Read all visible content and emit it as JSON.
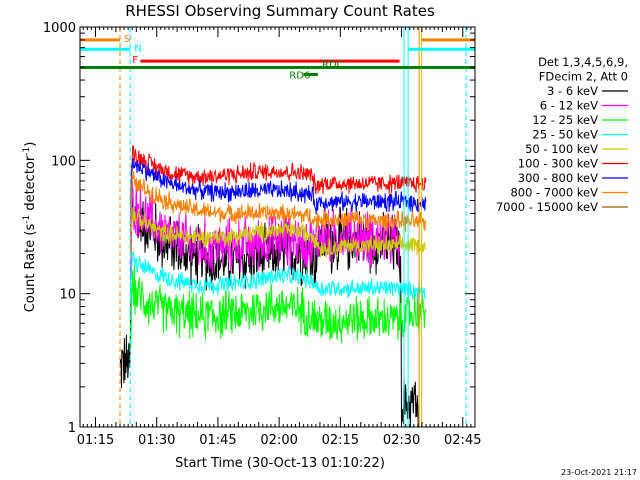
{
  "chart_data": {
    "type": "line",
    "title": "RHESSI Observing Summary Count Rates",
    "xlabel": "Start Time (30-Oct-13 01:10:22)",
    "ylabel_main": "Count Rate (s",
    "ylabel_sup1": "-1",
    "ylabel_mid": " detector",
    "ylabel_sup2": "-1",
    "ylabel_end": ")",
    "yscale": "log",
    "ylim": [
      1,
      1000
    ],
    "xlim_minutes": [
      1.2,
      98.0
    ],
    "x_ticks": [
      {
        "minute": 5,
        "label": "01:15"
      },
      {
        "minute": 20,
        "label": "01:30"
      },
      {
        "minute": 35,
        "label": "01:45"
      },
      {
        "minute": 50,
        "label": "02:00"
      },
      {
        "minute": 65,
        "label": "02:15"
      },
      {
        "minute": 80,
        "label": "02:30"
      },
      {
        "minute": 95,
        "label": "02:45"
      }
    ],
    "y_ticks": [
      {
        "value": 1,
        "label": "1"
      },
      {
        "value": 10,
        "label": "10"
      },
      {
        "value": 100,
        "label": "100"
      },
      {
        "value": 1000,
        "label": "1000"
      }
    ],
    "legend_header": [
      "Det 1,3,4,5,6,9,",
      "FDecim 2, Att 0"
    ],
    "series": [
      {
        "name": "3 - 6 keV",
        "color": "#000000",
        "points": [
          [
            11.0,
            2.6
          ],
          [
            11.5,
            3.0
          ],
          [
            13.5,
            3.0
          ],
          [
            13.6,
            6
          ],
          [
            14.0,
            45
          ],
          [
            15,
            38
          ],
          [
            18,
            31
          ],
          [
            20,
            27
          ],
          [
            23,
            23
          ],
          [
            26,
            21
          ],
          [
            30,
            19
          ],
          [
            34,
            18
          ],
          [
            38,
            17.5
          ],
          [
            42,
            18
          ],
          [
            46,
            19
          ],
          [
            50,
            20
          ],
          [
            54,
            20
          ],
          [
            58,
            19.5
          ],
          [
            59,
            19
          ],
          [
            60,
            25
          ],
          [
            62,
            24
          ],
          [
            65,
            25
          ],
          [
            68,
            26
          ],
          [
            71,
            25
          ],
          [
            74,
            24
          ],
          [
            77,
            23
          ],
          [
            79.5,
            22
          ],
          [
            80,
            1.5
          ],
          [
            84,
            1.5
          ],
          [
            84.3,
            0
          ]
        ]
      },
      {
        "name": "6 - 12 keV",
        "color": "#ff00ff",
        "points": [
          [
            13.6,
            6
          ],
          [
            14.0,
            52
          ],
          [
            15,
            44
          ],
          [
            18,
            36
          ],
          [
            20,
            31
          ],
          [
            23,
            27
          ],
          [
            26,
            25
          ],
          [
            30,
            23
          ],
          [
            34,
            22.5
          ],
          [
            38,
            23
          ],
          [
            42,
            23.5
          ],
          [
            46,
            24
          ],
          [
            50,
            25
          ],
          [
            54,
            25
          ],
          [
            58,
            24
          ],
          [
            59,
            23
          ],
          [
            60,
            27
          ],
          [
            62,
            26
          ],
          [
            65,
            27
          ],
          [
            68,
            27
          ],
          [
            71,
            26
          ],
          [
            74,
            26
          ],
          [
            77,
            25
          ],
          [
            79.5,
            24
          ]
        ]
      },
      {
        "name": "12 - 25 keV",
        "color": "#00ff00",
        "points": [
          [
            13.6,
            3
          ],
          [
            14.0,
            12
          ],
          [
            15,
            10
          ],
          [
            18,
            8.5
          ],
          [
            20,
            8
          ],
          [
            23,
            7.4
          ],
          [
            26,
            7.0
          ],
          [
            30,
            6.8
          ],
          [
            34,
            6.8
          ],
          [
            38,
            7.0
          ],
          [
            42,
            7.3
          ],
          [
            46,
            7.8
          ],
          [
            50,
            8.2
          ],
          [
            54,
            7.8
          ],
          [
            58,
            7.0
          ],
          [
            59,
            6.3
          ],
          [
            60,
            6.2
          ],
          [
            62,
            6.2
          ],
          [
            65,
            6.3
          ],
          [
            68,
            6.5
          ],
          [
            71,
            6.4
          ],
          [
            74,
            6.4
          ],
          [
            77,
            6.4
          ],
          [
            79.5,
            6.4
          ],
          [
            84.5,
            7.5
          ],
          [
            86,
            7.8
          ]
        ]
      },
      {
        "name": "25 - 50 keV",
        "color": "#00ffff",
        "points": [
          [
            13.6,
            8
          ],
          [
            14.0,
            19
          ],
          [
            15,
            17
          ],
          [
            18,
            15
          ],
          [
            20,
            14
          ],
          [
            23,
            13
          ],
          [
            26,
            12.2
          ],
          [
            30,
            11.8
          ],
          [
            34,
            11.6
          ],
          [
            38,
            11.8
          ],
          [
            42,
            12.3
          ],
          [
            46,
            13
          ],
          [
            50,
            13.6
          ],
          [
            54,
            13.4
          ],
          [
            58,
            12.5
          ],
          [
            59,
            11.5
          ],
          [
            60,
            10.8
          ],
          [
            62,
            11
          ],
          [
            65,
            11
          ],
          [
            68,
            11
          ],
          [
            71,
            11
          ],
          [
            74,
            11
          ],
          [
            77,
            11
          ],
          [
            79.5,
            11
          ],
          [
            84.5,
            10.5
          ],
          [
            86,
            10.5
          ]
        ]
      },
      {
        "name": "50 - 100 keV",
        "color": "#cccc00",
        "points": [
          [
            13.6,
            20
          ],
          [
            14.0,
            42
          ],
          [
            15,
            37
          ],
          [
            18,
            33
          ],
          [
            20,
            30
          ],
          [
            23,
            28
          ],
          [
            26,
            27
          ],
          [
            30,
            26.5
          ],
          [
            34,
            26.5
          ],
          [
            38,
            27
          ],
          [
            42,
            28
          ],
          [
            46,
            29
          ],
          [
            50,
            30
          ],
          [
            54,
            29.5
          ],
          [
            58,
            28
          ],
          [
            59,
            26
          ],
          [
            60,
            22
          ],
          [
            62,
            22
          ],
          [
            65,
            22.5
          ],
          [
            68,
            23
          ],
          [
            71,
            23
          ],
          [
            74,
            23
          ],
          [
            77,
            23
          ],
          [
            79.5,
            23
          ],
          [
            84.5,
            23
          ],
          [
            86,
            23
          ]
        ]
      },
      {
        "name": "100 - 300 keV",
        "color": "#ff0000",
        "points": [
          [
            13.6,
            30
          ],
          [
            14.0,
            118
          ],
          [
            15,
            107
          ],
          [
            18,
            96
          ],
          [
            20,
            89
          ],
          [
            23,
            82
          ],
          [
            26,
            78
          ],
          [
            30,
            76
          ],
          [
            34,
            76
          ],
          [
            38,
            78
          ],
          [
            42,
            80
          ],
          [
            46,
            82
          ],
          [
            50,
            83
          ],
          [
            54,
            81
          ],
          [
            58,
            78
          ],
          [
            59,
            60
          ],
          [
            60,
            67
          ],
          [
            62,
            67
          ],
          [
            65,
            67
          ],
          [
            68,
            67
          ],
          [
            71,
            67
          ],
          [
            74,
            67
          ],
          [
            77,
            67
          ],
          [
            79.5,
            67
          ],
          [
            84.5,
            67
          ],
          [
            86,
            67
          ]
        ]
      },
      {
        "name": "300 - 800 keV",
        "color": "#0000ff",
        "points": [
          [
            13.6,
            25
          ],
          [
            14.0,
            100
          ],
          [
            15,
            92
          ],
          [
            18,
            82
          ],
          [
            20,
            75
          ],
          [
            23,
            68
          ],
          [
            26,
            63
          ],
          [
            30,
            60
          ],
          [
            34,
            58
          ],
          [
            38,
            58
          ],
          [
            42,
            58.5
          ],
          [
            46,
            59
          ],
          [
            50,
            59
          ],
          [
            54,
            58
          ],
          [
            58,
            55
          ],
          [
            59,
            46
          ],
          [
            60,
            49
          ],
          [
            62,
            49
          ],
          [
            65,
            49
          ],
          [
            68,
            49
          ],
          [
            71,
            49
          ],
          [
            74,
            49
          ],
          [
            77,
            49
          ],
          [
            79.5,
            49
          ],
          [
            84.5,
            48
          ],
          [
            86,
            48
          ]
        ]
      },
      {
        "name": "800 - 7000 keV",
        "color": "#ff8000",
        "points": [
          [
            13.6,
            20
          ],
          [
            14.0,
            73
          ],
          [
            15,
            66
          ],
          [
            18,
            59
          ],
          [
            20,
            54
          ],
          [
            23,
            49
          ],
          [
            26,
            45
          ],
          [
            30,
            42
          ],
          [
            34,
            40.5
          ],
          [
            38,
            40
          ],
          [
            42,
            40
          ],
          [
            46,
            40
          ],
          [
            50,
            40
          ],
          [
            54,
            39
          ],
          [
            58,
            38
          ],
          [
            59,
            35
          ],
          [
            60,
            36
          ],
          [
            62,
            36
          ],
          [
            65,
            36
          ],
          [
            68,
            36
          ],
          [
            71,
            35.5
          ],
          [
            74,
            35
          ],
          [
            77,
            35
          ],
          [
            79.5,
            35
          ],
          [
            84.5,
            34
          ],
          [
            86,
            34
          ]
        ]
      },
      {
        "name": "7000 - 15000 keV",
        "color": "#996600",
        "points": []
      }
    ],
    "vertical_lines": [
      {
        "minute": 11.0,
        "color": "#ff8000",
        "style": "dashed"
      },
      {
        "minute": 13.5,
        "color": "#00ffff",
        "style": "dashed"
      },
      {
        "minute": 80.6,
        "color": "#00ffff",
        "style": "solid"
      },
      {
        "minute": 81.6,
        "color": "#00ffff",
        "style": "solid"
      },
      {
        "minute": 84.3,
        "color": "#ff8000",
        "style": "solid"
      },
      {
        "minute": 84.9,
        "color": "#cccc00",
        "style": "solid"
      },
      {
        "minute": 95.8,
        "color": "#00ffff",
        "style": "dashed"
      }
    ],
    "flag_bars": [
      {
        "label": "S",
        "color": "#ff8000",
        "y": 800,
        "segments": [
          [
            1.2,
            11.0
          ],
          [
            84.9,
            98.0
          ]
        ]
      },
      {
        "label": "N",
        "color": "#00ffff",
        "y": 680,
        "segments": [
          [
            1.2,
            13.5
          ],
          [
            81.6,
            98.0
          ]
        ]
      },
      {
        "label": "F",
        "color": "#ff0000",
        "y": 555,
        "segments": [
          [
            16.0,
            79.5
          ]
        ]
      },
      {
        "label": "RDC",
        "color": "#008000",
        "y": 497,
        "segments": [
          [
            1.2,
            98.0
          ]
        ]
      },
      {
        "label": "RD6",
        "color": "#008000",
        "y": 440,
        "segments": [
          [
            56.0,
            59.5
          ]
        ]
      }
    ],
    "timestamp": "23-Oct-2021 21:17"
  }
}
